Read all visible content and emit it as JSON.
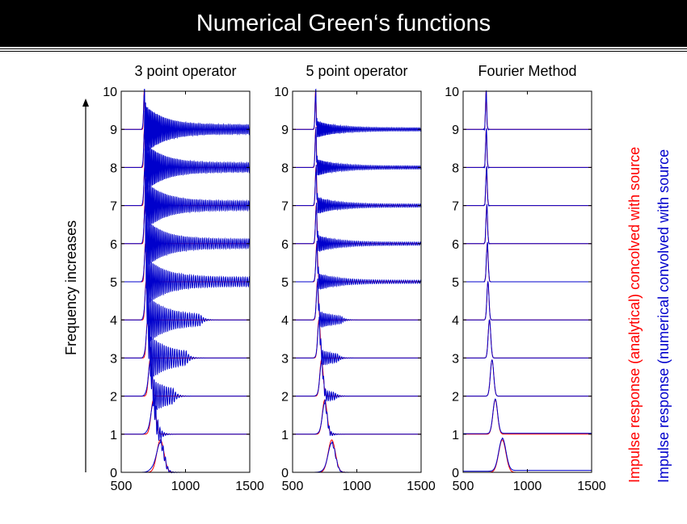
{
  "title": "Numerical Green‘s functions",
  "left_label": "Frequency increases",
  "legend": {
    "analytical": "Impulse response (analytical) concolved with source",
    "numerical": "Impulse response (numerical convolved with source"
  },
  "colors": {
    "analytical": "#ff0000",
    "numerical": "#0000cc"
  },
  "chart_data": [
    {
      "type": "line",
      "title": "3 point operator",
      "xlim": [
        500,
        1500
      ],
      "ylim": [
        0,
        10
      ],
      "xticks": [
        "500",
        "1000",
        "1500"
      ],
      "yticks": [
        "0",
        "1",
        "2",
        "3",
        "4",
        "5",
        "6",
        "7",
        "8",
        "9",
        "10"
      ],
      "traces": 10,
      "dispersion": 1.0
    },
    {
      "type": "line",
      "title": "5 point operator",
      "xlim": [
        500,
        1500
      ],
      "ylim": [
        0,
        10
      ],
      "xticks": [
        "500",
        "1000",
        "1500"
      ],
      "yticks": [
        "0",
        "1",
        "2",
        "3",
        "4",
        "5",
        "6",
        "7",
        "8",
        "9",
        "10"
      ],
      "traces": 10,
      "dispersion": 0.35
    },
    {
      "type": "line",
      "title": "Fourier Method",
      "xlim": [
        500,
        1500
      ],
      "ylim": [
        0,
        10
      ],
      "xticks": [
        "500",
        "1000",
        "1500"
      ],
      "yticks": [
        "0",
        "1",
        "2",
        "3",
        "4",
        "5",
        "6",
        "7",
        "8",
        "9",
        "10"
      ],
      "traces": 10,
      "dispersion": 0.0
    }
  ]
}
